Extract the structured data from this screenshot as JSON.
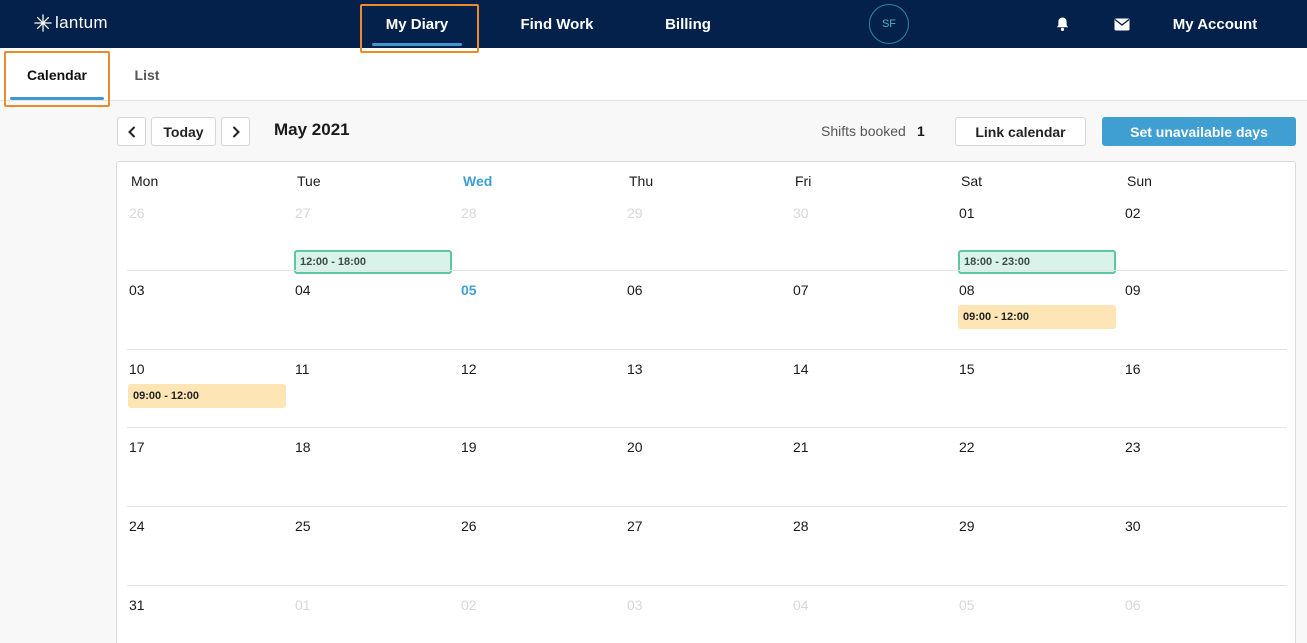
{
  "brand": {
    "name": "lantum"
  },
  "nav": {
    "items": [
      {
        "label": "My Diary"
      },
      {
        "label": "Find Work"
      },
      {
        "label": "Billing"
      }
    ],
    "avatar_initials": "SF",
    "account_label": "My Account",
    "icons": [
      "bell-icon",
      "mail-icon"
    ]
  },
  "subtabs": [
    {
      "label": "Calendar"
    },
    {
      "label": "List"
    }
  ],
  "toolbar": {
    "today_label": "Today",
    "month_title": "May 2021",
    "shifts_booked_label": "Shifts booked",
    "shifts_booked_count": "1",
    "link_calendar_label": "Link calendar",
    "set_unavailable_label": "Set unavailable days"
  },
  "calendar": {
    "weekdays": [
      "Mon",
      "Tue",
      "Wed",
      "Thu",
      "Fri",
      "Sat",
      "Sun"
    ],
    "today_weekday": "Wed",
    "weeks": [
      [
        "26",
        "27",
        "28",
        "29",
        "30",
        "01",
        "02"
      ],
      [
        "03",
        "04",
        "05",
        "06",
        "07",
        "08",
        "09"
      ],
      [
        "10",
        "11",
        "12",
        "13",
        "14",
        "15",
        "16"
      ],
      [
        "17",
        "18",
        "19",
        "20",
        "21",
        "22",
        "23"
      ],
      [
        "24",
        "25",
        "26",
        "27",
        "28",
        "29",
        "30"
      ],
      [
        "31",
        "01",
        "02",
        "03",
        "04",
        "05",
        "06"
      ]
    ],
    "today_date": "05",
    "shifts": [
      {
        "day": "27",
        "time": "12:00 - 18:00",
        "status": "booked"
      },
      {
        "day": "01",
        "time": "18:00 - 23:00",
        "status": "booked"
      },
      {
        "day": "08",
        "time": "09:00 - 12:00",
        "status": "pending"
      },
      {
        "day": "10",
        "time": "09:00 - 12:00",
        "status": "pending"
      }
    ]
  },
  "colors": {
    "nav_bg": "#03214a",
    "accent": "#3f9fd2",
    "booked_bg": "#d9f2ea",
    "booked_border": "#5fc6a3",
    "pending_bg": "#fde5b5",
    "highlight": "#ef8a2c"
  }
}
